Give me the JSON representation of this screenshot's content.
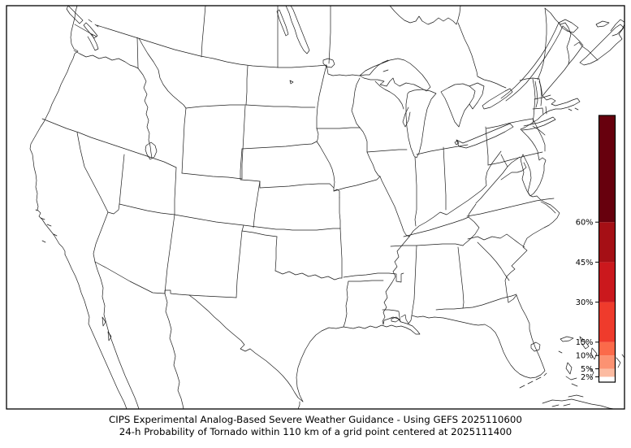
{
  "figure": {
    "background": "#ffffff",
    "frame_color": "#000000",
    "map_line_color": "#1c1c1c"
  },
  "caption": {
    "line1": "CIPS Experimental Analog-Based Severe Weather Guidance - Using GEFS 2025110600",
    "line2": "24-h Probability of Tornado within 110 km of a grid point centered at 2025111400"
  },
  "colorbar": {
    "min_percent": 0,
    "max_percent": 100,
    "ticks": [
      {
        "value": 60,
        "label": "60%"
      },
      {
        "value": 45,
        "label": "45%"
      },
      {
        "value": 30,
        "label": "30%"
      },
      {
        "value": 15,
        "label": "15%"
      },
      {
        "value": 10,
        "label": "10%"
      },
      {
        "value": 5,
        "label": "5%"
      },
      {
        "value": 2,
        "label": "2%"
      }
    ],
    "segments": [
      {
        "from": 0,
        "to": 2,
        "color": "#ffffff"
      },
      {
        "from": 2,
        "to": 5,
        "color": "#fcbba1"
      },
      {
        "from": 5,
        "to": 10,
        "color": "#fc9272"
      },
      {
        "from": 10,
        "to": 15,
        "color": "#fb6a4a"
      },
      {
        "from": 15,
        "to": 30,
        "color": "#ef3b2c"
      },
      {
        "from": 30,
        "to": 45,
        "color": "#cb181d"
      },
      {
        "from": 45,
        "to": 60,
        "color": "#a50f15"
      },
      {
        "from": 60,
        "to": 100,
        "color": "#67000d"
      }
    ]
  },
  "chart_data": {
    "type": "heatmap",
    "title": "CIPS Experimental Analog-Based Severe Weather Guidance - Using GEFS 2025110600",
    "subtitle": "24-h Probability of Tornado within 110 km of a grid point centered at 2025111400",
    "region": "Continental United States (state outlines, Lambert conformal projection)",
    "variable": "24-h probability of tornado within 110 km of a grid point (%)",
    "colorbar_levels_percent": [
      2,
      5,
      10,
      15,
      30,
      45,
      60
    ],
    "colorbar_colors": [
      "#ffffff",
      "#fcbba1",
      "#fc9272",
      "#fb6a4a",
      "#ef3b2c",
      "#cb181d",
      "#a50f15",
      "#67000d"
    ],
    "legend_position": "right inset colorbar",
    "grid": false,
    "values_depicted": "no contoured areas >= 2% anywhere on the map (field blank / zero)"
  }
}
